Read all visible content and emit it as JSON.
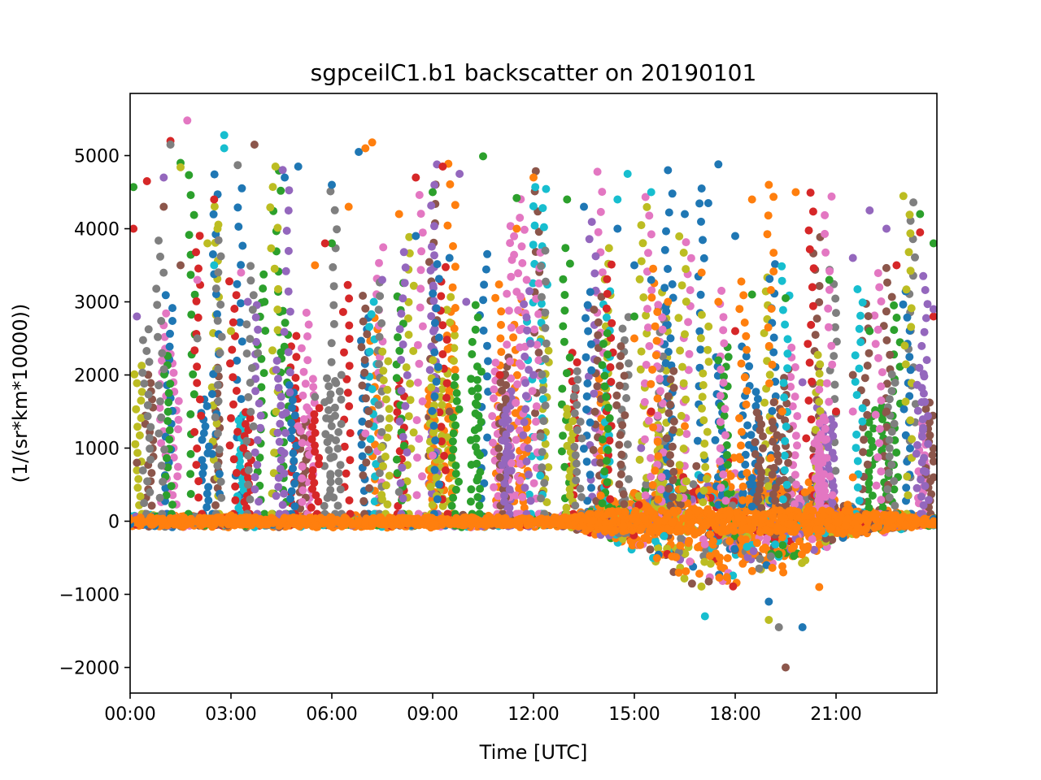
{
  "chart_data": {
    "type": "scatter",
    "title": "sgpceilC1.b1 backscatter on 20190101",
    "xlabel": "Time [UTC]",
    "ylabel": "(1/(sr*km*10000))",
    "x_unit": "hours UTC",
    "xlim": [
      0,
      24
    ],
    "ylim": [
      -2350,
      5850
    ],
    "x_ticks": [
      {
        "value": 0,
        "label": "00:00"
      },
      {
        "value": 3,
        "label": "03:00"
      },
      {
        "value": 6,
        "label": "06:00"
      },
      {
        "value": 9,
        "label": "09:00"
      },
      {
        "value": 12,
        "label": "12:00"
      },
      {
        "value": 15,
        "label": "15:00"
      },
      {
        "value": 18,
        "label": "18:00"
      },
      {
        "value": 21,
        "label": "21:00"
      }
    ],
    "y_ticks": [
      {
        "value": -2000,
        "label": "−2000"
      },
      {
        "value": -1000,
        "label": "−1000"
      },
      {
        "value": 0,
        "label": "0"
      },
      {
        "value": 1000,
        "label": "1000"
      },
      {
        "value": 2000,
        "label": "2000"
      },
      {
        "value": 3000,
        "label": "3000"
      },
      {
        "value": 4000,
        "label": "4000"
      },
      {
        "value": 5000,
        "label": "5000"
      }
    ],
    "grid": false,
    "legend": "none",
    "palette": [
      "#1f77b4",
      "#ff7f0e",
      "#2ca02c",
      "#d62728",
      "#9467bd",
      "#8c564b",
      "#e377c2",
      "#7f7f7f",
      "#bcbd22",
      "#17becf"
    ],
    "series": [
      {
        "color": "#1f77b4",
        "x": [
          0.0,
          4.6,
          5.0,
          6.0,
          6.8,
          8.5,
          9.5,
          13.5,
          14.5,
          15.0,
          15.5,
          16.0,
          16.5,
          17.0,
          17.2,
          17.5,
          18.0,
          18.5,
          19.0,
          20.0,
          23.9
        ],
        "y": [
          -40,
          4700,
          4850,
          4600,
          5050,
          3900,
          3600,
          4300,
          4000,
          3500,
          3300,
          4800,
          4200,
          4550,
          4350,
          4880,
          3900,
          200,
          -1100,
          -1450,
          30
        ]
      },
      {
        "color": "#ff7f0e",
        "x": [
          0.0,
          3.0,
          5.5,
          6.5,
          7.0,
          7.2,
          8.0,
          11.5,
          12.0,
          14.0,
          15.0,
          16.0,
          16.5,
          17.0,
          17.5,
          18.5,
          19.0,
          19.4,
          19.8,
          20.5,
          21.5,
          23.9
        ],
        "y": [
          20,
          80,
          3500,
          4300,
          5100,
          5180,
          4200,
          4000,
          4700,
          350,
          2500,
          3000,
          1300,
          3400,
          3000,
          4400,
          4600,
          1500,
          4500,
          -900,
          600,
          0
        ]
      },
      {
        "color": "#2ca02c",
        "x": [
          0.1,
          1.5,
          4.0,
          6.0,
          9.0,
          10.5,
          11.5,
          13.0,
          15.0,
          17.5,
          18.5,
          19.5,
          20.8,
          22.0,
          23.5,
          23.9
        ],
        "y": [
          4570,
          4900,
          3000,
          3800,
          4500,
          4990,
          4420,
          4400,
          2800,
          2200,
          3100,
          3050,
          3300,
          2600,
          4200,
          3800
        ]
      },
      {
        "color": "#d62728",
        "x": [
          0.1,
          0.5,
          1.2,
          2.5,
          5.8,
          8.5,
          9.3,
          11.0,
          15.5,
          18.0,
          21.0,
          22.8,
          23.5,
          23.9
        ],
        "y": [
          4000,
          4650,
          5200,
          4400,
          3800,
          4700,
          4850,
          2000,
          1500,
          2600,
          1500,
          3500,
          3950,
          2800
        ]
      },
      {
        "color": "#9467bd",
        "x": [
          0.2,
          1.0,
          3.5,
          7.5,
          9.8,
          10.0,
          12.0,
          15.2,
          20.0,
          21.5,
          22.0,
          22.5,
          23.9
        ],
        "y": [
          2800,
          4700,
          3000,
          3300,
          4750,
          3000,
          2000,
          1000,
          1900,
          3600,
          4250,
          4000,
          2900
        ]
      },
      {
        "color": "#8c564b",
        "x": [
          0.2,
          1.0,
          1.5,
          3.7,
          9.5,
          11.0,
          19.5,
          21.5,
          22.5,
          23.9
        ],
        "y": [
          800,
          4300,
          3500,
          5150,
          1500,
          600,
          -2000,
          2000,
          1500,
          600
        ]
      },
      {
        "color": "#e377c2",
        "x": [
          1.7,
          2.0,
          3.3,
          5.0,
          7.0,
          9.0,
          20.5,
          21.5
        ],
        "y": [
          5480,
          3300,
          3400,
          1300,
          1200,
          900,
          1800,
          1500
        ]
      },
      {
        "color": "#7f7f7f",
        "x": [
          1.2,
          2.0,
          3.2,
          3.8,
          5.5,
          8.0,
          19.3
        ],
        "y": [
          5150,
          2500,
          4870,
          2300,
          1700,
          400,
          -1450
        ]
      },
      {
        "color": "#bcbd22",
        "x": [
          1.5,
          2.3,
          2.6,
          3.0,
          7.5,
          19.0
        ],
        "y": [
          4840,
          3800,
          4000,
          2600,
          300,
          -1350
        ]
      },
      {
        "color": "#17becf",
        "x": [
          2.5,
          2.8,
          2.8,
          14.5,
          14.8,
          15.5,
          17.1
        ],
        "y": [
          3500,
          5100,
          5280,
          4400,
          4750,
          4500,
          -1300
        ]
      }
    ]
  }
}
